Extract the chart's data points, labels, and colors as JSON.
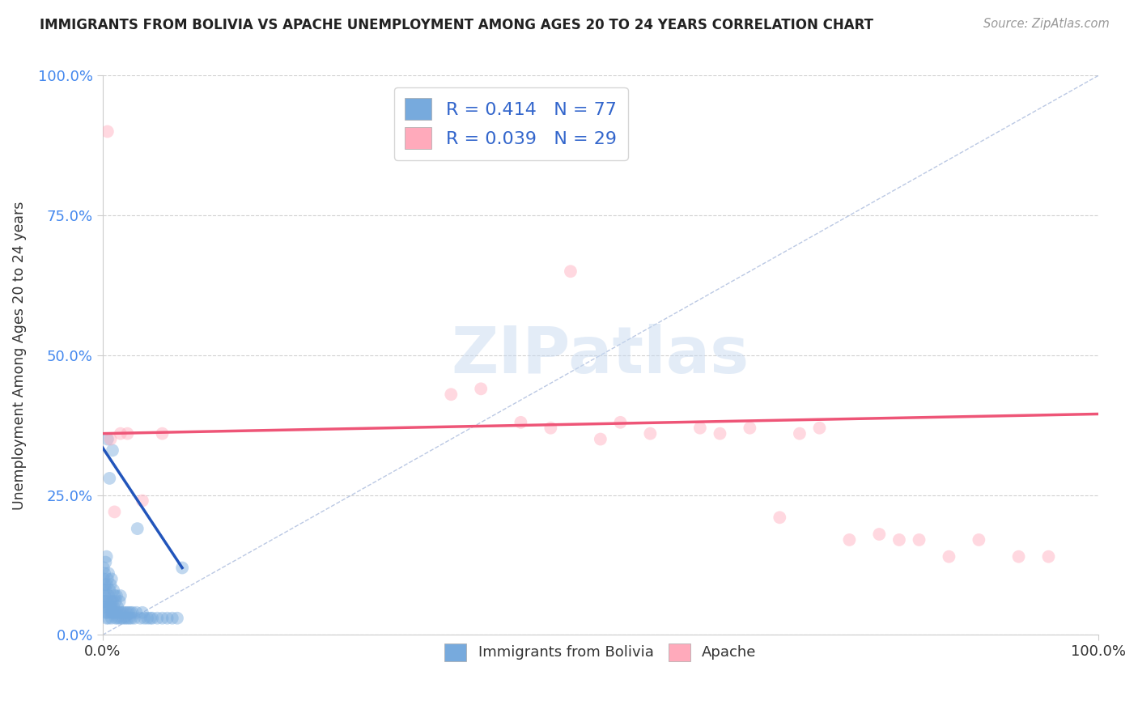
{
  "title": "IMMIGRANTS FROM BOLIVIA VS APACHE UNEMPLOYMENT AMONG AGES 20 TO 24 YEARS CORRELATION CHART",
  "source": "Source: ZipAtlas.com",
  "ylabel": "Unemployment Among Ages 20 to 24 years",
  "xlim": [
    0.0,
    1.0
  ],
  "ylim": [
    0.0,
    1.0
  ],
  "xtick_positions": [
    0.0,
    1.0
  ],
  "xtick_labels": [
    "0.0%",
    "100.0%"
  ],
  "ytick_positions": [
    0.0,
    0.25,
    0.5,
    0.75,
    1.0
  ],
  "ytick_labels": [
    "0.0%",
    "25.0%",
    "50.0%",
    "75.0%",
    "100.0%"
  ],
  "background_color": "#ffffff",
  "grid_color": "#cccccc",
  "blue_dot_color": "#77aadd",
  "pink_dot_color": "#ffaabb",
  "blue_line_color": "#2255bb",
  "pink_line_color": "#ee5577",
  "diagonal_color": "#aabbdd",
  "marker_size": 130,
  "marker_alpha": 0.45,
  "R_blue": "0.414",
  "N_blue": "77",
  "R_pink": "0.039",
  "N_pink": "29",
  "blue_line_x0": 0.0,
  "blue_line_y0": 0.335,
  "blue_line_x1": 0.08,
  "blue_line_y1": 0.12,
  "pink_line_x0": 0.0,
  "pink_line_y0": 0.36,
  "pink_line_x1": 1.0,
  "pink_line_y1": 0.395,
  "blue_scatter_x": [
    0.001,
    0.001,
    0.001,
    0.001,
    0.002,
    0.002,
    0.002,
    0.002,
    0.003,
    0.003,
    0.003,
    0.003,
    0.004,
    0.004,
    0.004,
    0.004,
    0.005,
    0.005,
    0.005,
    0.005,
    0.006,
    0.006,
    0.006,
    0.007,
    0.007,
    0.007,
    0.008,
    0.008,
    0.008,
    0.009,
    0.009,
    0.009,
    0.01,
    0.01,
    0.01,
    0.011,
    0.011,
    0.012,
    0.012,
    0.013,
    0.013,
    0.014,
    0.014,
    0.015,
    0.015,
    0.016,
    0.017,
    0.017,
    0.018,
    0.018,
    0.019,
    0.02,
    0.021,
    0.022,
    0.023,
    0.024,
    0.025,
    0.026,
    0.027,
    0.028,
    0.029,
    0.03,
    0.032,
    0.034,
    0.035,
    0.038,
    0.04,
    0.042,
    0.045,
    0.048,
    0.05,
    0.055,
    0.06,
    0.065,
    0.07,
    0.075,
    0.08
  ],
  "blue_scatter_y": [
    0.06,
    0.08,
    0.1,
    0.12,
    0.05,
    0.07,
    0.09,
    0.11,
    0.04,
    0.06,
    0.08,
    0.13,
    0.03,
    0.05,
    0.09,
    0.14,
    0.04,
    0.06,
    0.1,
    0.35,
    0.03,
    0.07,
    0.11,
    0.05,
    0.08,
    0.28,
    0.04,
    0.06,
    0.09,
    0.03,
    0.05,
    0.1,
    0.04,
    0.06,
    0.33,
    0.05,
    0.08,
    0.04,
    0.07,
    0.03,
    0.06,
    0.04,
    0.07,
    0.03,
    0.05,
    0.04,
    0.03,
    0.06,
    0.04,
    0.07,
    0.03,
    0.04,
    0.03,
    0.04,
    0.03,
    0.04,
    0.03,
    0.04,
    0.03,
    0.04,
    0.03,
    0.04,
    0.03,
    0.04,
    0.19,
    0.03,
    0.04,
    0.03,
    0.03,
    0.03,
    0.03,
    0.03,
    0.03,
    0.03,
    0.03,
    0.03,
    0.12
  ],
  "pink_scatter_x": [
    0.005,
    0.008,
    0.012,
    0.018,
    0.025,
    0.04,
    0.06,
    0.35,
    0.38,
    0.42,
    0.45,
    0.47,
    0.5,
    0.52,
    0.55,
    0.6,
    0.62,
    0.65,
    0.68,
    0.7,
    0.72,
    0.75,
    0.78,
    0.8,
    0.82,
    0.85,
    0.88,
    0.92,
    0.95
  ],
  "pink_scatter_y": [
    0.9,
    0.35,
    0.22,
    0.36,
    0.36,
    0.24,
    0.36,
    0.43,
    0.44,
    0.38,
    0.37,
    0.65,
    0.35,
    0.38,
    0.36,
    0.37,
    0.36,
    0.37,
    0.21,
    0.36,
    0.37,
    0.17,
    0.18,
    0.17,
    0.17,
    0.14,
    0.17,
    0.14,
    0.14
  ]
}
